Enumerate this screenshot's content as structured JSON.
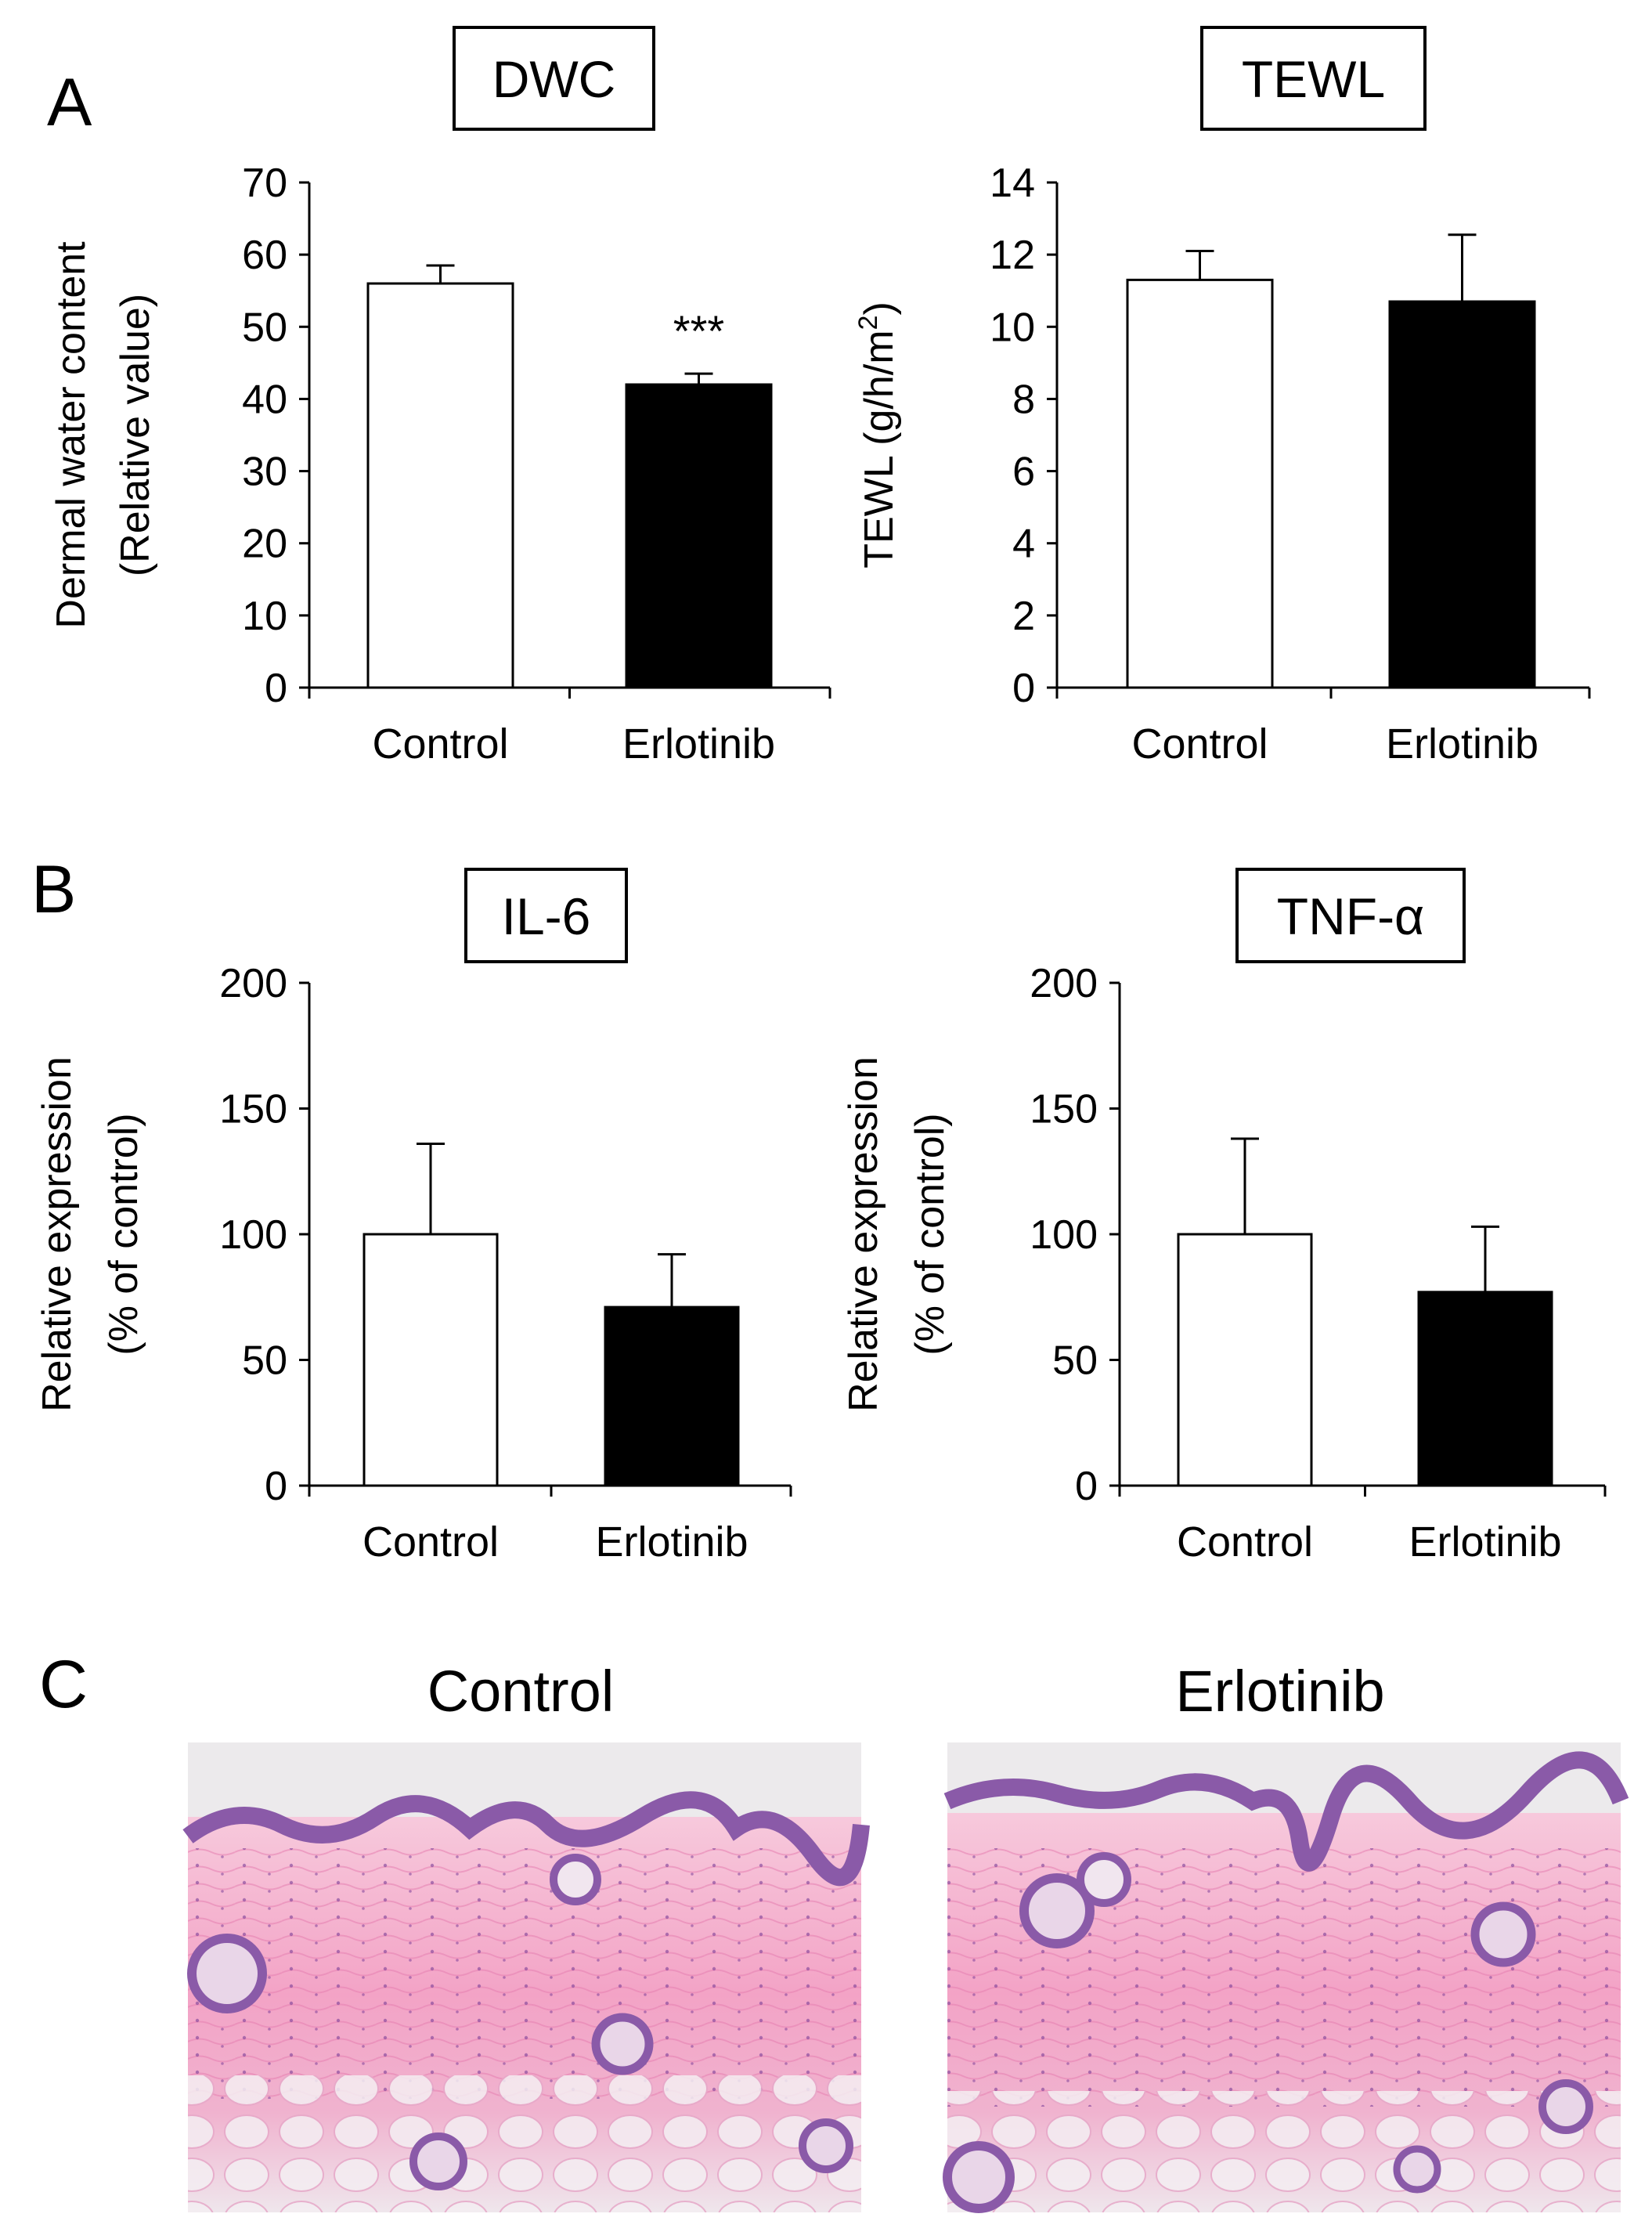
{
  "panels": [
    {
      "letter": "A"
    },
    {
      "letter": "B"
    },
    {
      "letter": "C"
    }
  ],
  "chart_data": [
    {
      "type": "bar",
      "title": "DWC",
      "ylabel_line1": "Dermal water content",
      "ylabel_line2": "(Relative value)",
      "categories": [
        "Control",
        "Erlotinib"
      ],
      "values": [
        56,
        42
      ],
      "errors": [
        2.5,
        1.5
      ],
      "bar_colors": [
        "#ffffff",
        "#000000"
      ],
      "annotations": [
        "",
        "***"
      ],
      "ylim": [
        0,
        70
      ],
      "yticks": [
        "0",
        "10",
        "20",
        "30",
        "40",
        "50",
        "60",
        "70"
      ]
    },
    {
      "type": "bar",
      "title": "TEWL",
      "ylabel_line1": "TEWL (g/h/m",
      "ylabel_sup": "2",
      "ylabel_line1_end": ")",
      "categories": [
        "Control",
        "Erlotinib"
      ],
      "values": [
        11.3,
        10.7
      ],
      "errors": [
        0.8,
        1.85
      ],
      "bar_colors": [
        "#ffffff",
        "#000000"
      ],
      "annotations": [
        "",
        ""
      ],
      "ylim": [
        0,
        14
      ],
      "yticks": [
        "0",
        "2",
        "4",
        "6",
        "8",
        "10",
        "12",
        "14"
      ]
    },
    {
      "type": "bar",
      "title": "IL-6",
      "ylabel_line1": "Relative expression",
      "ylabel_line2": "(% of control)",
      "categories": [
        "Control",
        "Erlotinib"
      ],
      "values": [
        100,
        71
      ],
      "errors": [
        36,
        21
      ],
      "bar_colors": [
        "#ffffff",
        "#000000"
      ],
      "annotations": [
        "",
        ""
      ],
      "ylim": [
        0,
        200
      ],
      "yticks": [
        "0",
        "50",
        "100",
        "150",
        "200"
      ]
    },
    {
      "type": "bar",
      "title": "TNF-α",
      "ylabel_line1": "Relative expression",
      "ylabel_line2": "(% of control)",
      "categories": [
        "Control",
        "Erlotinib"
      ],
      "values": [
        100,
        77
      ],
      "errors": [
        38,
        26
      ],
      "bar_colors": [
        "#ffffff",
        "#000000"
      ],
      "annotations": [
        "",
        ""
      ],
      "ylim": [
        0,
        200
      ],
      "yticks": [
        "0",
        "50",
        "100",
        "150",
        "200"
      ]
    }
  ],
  "histology": [
    {
      "title": "Control"
    },
    {
      "title": "Erlotinib"
    }
  ],
  "colors": {
    "tissue_pink": "#f2a0c4",
    "tissue_purple": "#8a5aa8",
    "background": "#eceaec"
  }
}
